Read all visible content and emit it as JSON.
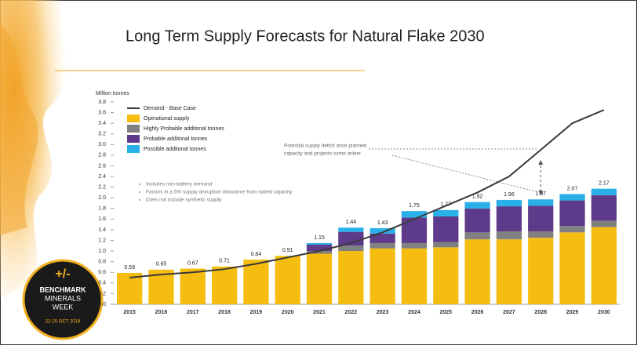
{
  "chart_data": {
    "type": "stacked-bar-line",
    "title": "Long Term Supply Forecasts for Natural Flake 2030",
    "y_label": "Million tonnes",
    "categories": [
      "2015",
      "2016",
      "2017",
      "2018",
      "2019",
      "2020",
      "2021",
      "2022",
      "2023",
      "2024",
      "2025",
      "2026",
      "2027",
      "2028",
      "2029",
      "2030"
    ],
    "series": [
      {
        "name": "Operational supply",
        "color": "#f5bd0f",
        "type": "bar",
        "values": [
          0.59,
          0.65,
          0.67,
          0.71,
          0.84,
          0.91,
          0.95,
          1.0,
          1.05,
          1.05,
          1.07,
          1.22,
          1.22,
          1.25,
          1.35,
          1.45
        ]
      },
      {
        "name": "Highly Probable additonal tonnes",
        "color": "#808080",
        "type": "bar",
        "values": [
          0,
          0,
          0,
          0,
          0,
          0,
          0.05,
          0.1,
          0.1,
          0.1,
          0.1,
          0.13,
          0.15,
          0.12,
          0.12,
          0.12
        ]
      },
      {
        "name": "Probable additonal tonnes",
        "color": "#5e3a8a",
        "type": "bar",
        "values": [
          0,
          0,
          0,
          0,
          0,
          0,
          0.12,
          0.26,
          0.18,
          0.48,
          0.48,
          0.45,
          0.47,
          0.48,
          0.48,
          0.48
        ]
      },
      {
        "name": "Possible additonal tonnes",
        "color": "#2ab0e8",
        "type": "bar",
        "values": [
          0,
          0,
          0,
          0,
          0,
          0,
          0.03,
          0.08,
          0.1,
          0.12,
          0.12,
          0.12,
          0.12,
          0.12,
          0.12,
          0.12
        ]
      },
      {
        "name": "Demand - Base Case",
        "color": "#3a3a3a",
        "type": "line",
        "values": [
          0.5,
          0.56,
          0.6,
          0.66,
          0.76,
          0.88,
          1.0,
          1.15,
          1.35,
          1.6,
          1.85,
          2.1,
          2.4,
          2.9,
          3.4,
          3.65
        ]
      }
    ],
    "totals": [
      0.59,
      0.65,
      0.67,
      0.71,
      0.84,
      0.91,
      1.15,
      1.44,
      1.43,
      1.75,
      1.77,
      1.92,
      1.96,
      1.97,
      2.07,
      2.17
    ],
    "ylim": [
      0,
      3.8
    ],
    "yticks": [
      {
        "value": 0,
        "label": "0.0"
      },
      0.2,
      0.4,
      0.6,
      0.8,
      {
        "value": 1,
        "label": "1.0"
      },
      1.2,
      1.4,
      1.6,
      1.8,
      {
        "value": 2,
        "label": "2.0"
      },
      2.2,
      2.4,
      2.6,
      2.8,
      {
        "value": 3,
        "label": "3.0"
      },
      3.2,
      3.4,
      3.6,
      3.8
    ],
    "legend": "top-left",
    "notes": [
      "Includes non-battery demand",
      "Factors in a 5% supply disruption allowance from stated capacity",
      "Does not include synthetic supply"
    ],
    "annotation": [
      "Potential supply deficit once planned",
      "capacity and projects come online"
    ]
  },
  "logo": {
    "symbol": "+/-",
    "lines": [
      "BENCHMARK",
      "MINERALS",
      "WEEK"
    ],
    "date": "22-25 OCT 2018"
  }
}
